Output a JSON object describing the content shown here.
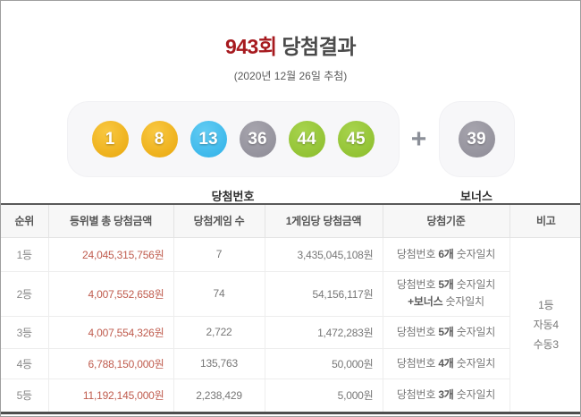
{
  "header": {
    "round": "943회",
    "title_suffix": " 당첨결과",
    "subtitle": "(2020년 12월 26일 추첨)"
  },
  "colors": {
    "accent_red": "#a6191e",
    "amount_text": "#bf5b4d",
    "balls": {
      "yellow": [
        "#f9c841",
        "#e9a70d"
      ],
      "blue": [
        "#63ccf3",
        "#2fb1e8"
      ],
      "gray": [
        "#a7a5ae",
        "#8d8b96"
      ],
      "green": [
        "#a8d44e",
        "#8abc2a"
      ]
    }
  },
  "draw": {
    "numbers": [
      {
        "value": "1",
        "color": "yellow"
      },
      {
        "value": "8",
        "color": "yellow"
      },
      {
        "value": "13",
        "color": "blue"
      },
      {
        "value": "36",
        "color": "gray"
      },
      {
        "value": "44",
        "color": "green"
      },
      {
        "value": "45",
        "color": "green"
      }
    ],
    "bonus": {
      "value": "39",
      "color": "gray"
    },
    "plus_sign": "+",
    "numbers_label": "당첨번호",
    "bonus_label": "보너스"
  },
  "table": {
    "columns": [
      "순위",
      "등위별 총 당첨금액",
      "당첨게임 수",
      "1게임당 당첨금액",
      "당첨기준",
      "비고"
    ],
    "rows": [
      {
        "rank": "1등",
        "total": "24,045,315,756원",
        "games": "7",
        "per_game": "3,435,045,108원",
        "criteria": [
          [
            [
              "당첨번호 ",
              false
            ],
            [
              "6개",
              true
            ],
            [
              " 숫자일치",
              false
            ]
          ]
        ]
      },
      {
        "rank": "2등",
        "total": "4,007,552,658원",
        "games": "74",
        "per_game": "54,156,117원",
        "criteria": [
          [
            [
              "당첨번호 ",
              false
            ],
            [
              "5개",
              true
            ],
            [
              " 숫자일치",
              false
            ]
          ],
          [
            [
              "+보너스",
              true
            ],
            [
              " 숫자일치",
              false
            ]
          ]
        ]
      },
      {
        "rank": "3등",
        "total": "4,007,554,326원",
        "games": "2,722",
        "per_game": "1,472,283원",
        "criteria": [
          [
            [
              "당첨번호 ",
              false
            ],
            [
              "5개",
              true
            ],
            [
              " 숫자일치",
              false
            ]
          ]
        ]
      },
      {
        "rank": "4등",
        "total": "6,788,150,000원",
        "games": "135,763",
        "per_game": "50,000원",
        "criteria": [
          [
            [
              "당첨번호 ",
              false
            ],
            [
              "4개",
              true
            ],
            [
              " 숫자일치",
              false
            ]
          ]
        ]
      },
      {
        "rank": "5등",
        "total": "11,192,145,000원",
        "games": "2,238,429",
        "per_game": "5,000원",
        "criteria": [
          [
            [
              "당첨번호 ",
              false
            ],
            [
              "3개",
              true
            ],
            [
              " 숫자일치",
              false
            ]
          ]
        ]
      }
    ],
    "remark_lines": [
      "1등",
      "자동4",
      "수동3"
    ]
  }
}
